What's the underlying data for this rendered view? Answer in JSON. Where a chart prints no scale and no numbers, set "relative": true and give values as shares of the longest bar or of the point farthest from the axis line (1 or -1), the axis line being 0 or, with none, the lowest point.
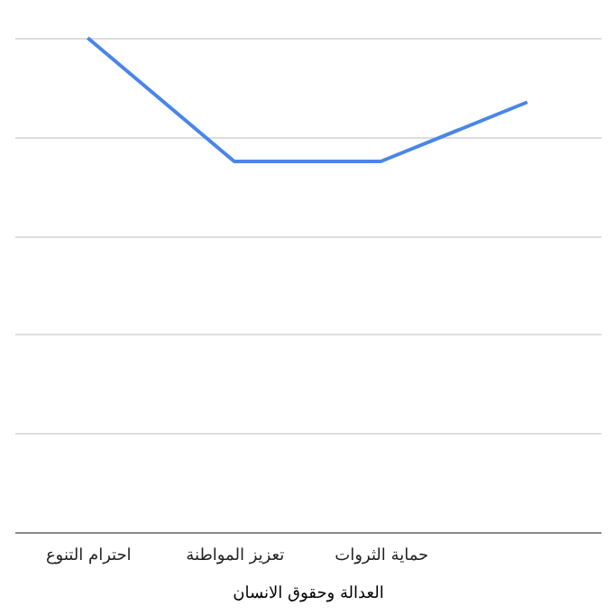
{
  "chart_data": {
    "type": "line",
    "xlabel": "العدالة وحقوق الانسان",
    "categories": [
      "احترام التنوع",
      "تعزيز المواطنة",
      "حماية الثروات",
      null
    ],
    "relative": true,
    "grid": "y",
    "series": [
      {
        "color": "#4a86e8",
        "values": [
          1,
          0.75,
          0.75,
          0.87
        ]
      }
    ]
  }
}
